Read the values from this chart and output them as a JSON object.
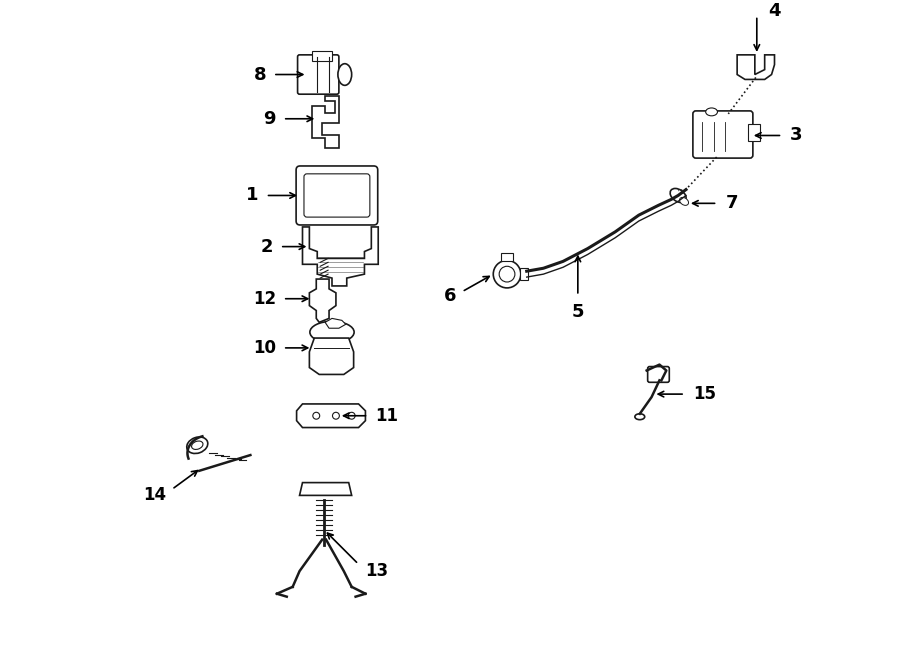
{
  "title": "",
  "background_color": "#ffffff",
  "line_color": "#1a1a1a",
  "text_color": "#000000",
  "fig_width": 9.0,
  "fig_height": 6.61,
  "dpi": 100
}
